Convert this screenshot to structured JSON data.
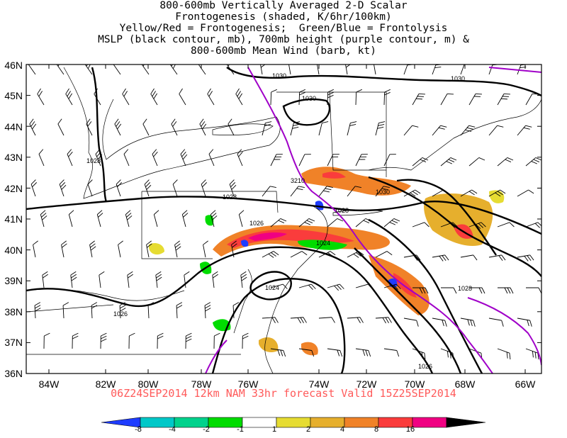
{
  "title": {
    "line1": "800-600mb Vertically Averaged 2-D Scalar",
    "line2": "Frontogenesis (shaded, K/6hr/100km)",
    "line3": "Yellow/Red = Frontogenesis;  Green/Blue = Frontolysis",
    "line4": "MSLP (black contour, mb), 700mb height (purple contour, m) &",
    "line5": "800-600mb Mean Wind (barb, kt)"
  },
  "valid_line": "06Z24SEP2014 12km NAM 33hr forecast Valid 15Z25SEP2014",
  "map": {
    "lat_labels": [
      "46N",
      "45N",
      "44N",
      "43N",
      "42N",
      "41N",
      "40N",
      "39N",
      "38N",
      "37N",
      "36N"
    ],
    "lon_labels": [
      "84W",
      "82W",
      "80W",
      "78W",
      "76W",
      "74W",
      "72W",
      "70W",
      "68W",
      "66W"
    ],
    "mslp_labels": [
      "1030",
      "1030",
      "1030",
      "1028",
      "1028",
      "1026",
      "1028",
      "1024",
      "1024",
      "1030",
      "1028",
      "1026",
      "1026"
    ],
    "height_label": "3210"
  },
  "colorbar": {
    "ticks": [
      "-8",
      "-4",
      "-2",
      "-1",
      "1",
      "2",
      "4",
      "8",
      "16"
    ],
    "colors": [
      "#1e3cff",
      "#00c8c8",
      "#00d28c",
      "#00dc00",
      "#ffffff",
      "#e6dc32",
      "#e6af2d",
      "#f08228",
      "#fa3c3c",
      "#f00082",
      "#000000"
    ]
  },
  "legend_colors": {
    "mslp_contour": "#000000",
    "height_contour": "#a000c8"
  }
}
